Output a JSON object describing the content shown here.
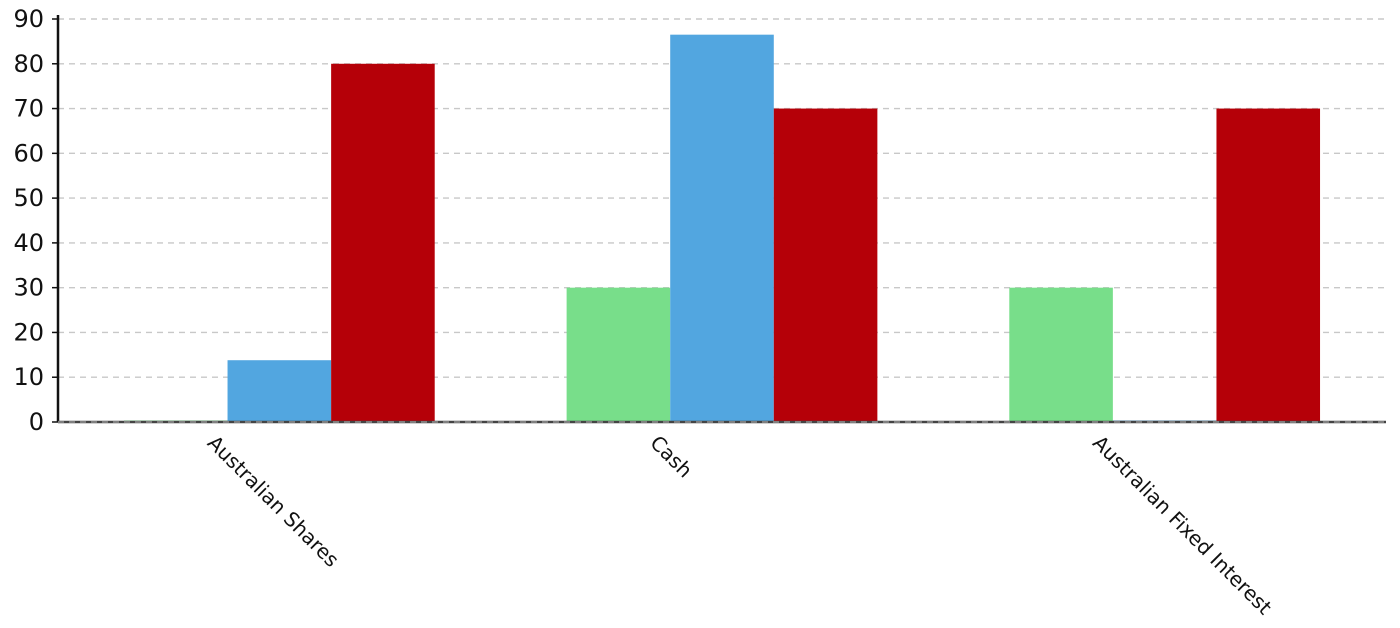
{
  "chart_data": {
    "type": "bar",
    "title": "",
    "xlabel": "",
    "ylabel": "",
    "categories": [
      "Australian Shares",
      "Cash",
      "Australian Fixed Interest"
    ],
    "series": [
      {
        "values": [
          0.3,
          30,
          30
        ],
        "color": "#78de8a"
      },
      {
        "values": [
          13.8,
          86.5,
          0.3
        ],
        "color": "#52a6e0"
      },
      {
        "values": [
          80,
          70,
          70
        ],
        "color": "#b50008"
      }
    ],
    "ylim": [
      0,
      90
    ],
    "yticks": [
      0,
      10,
      20,
      30,
      40,
      50,
      60,
      70,
      80,
      90
    ],
    "grid": true,
    "grid_style": "dashed",
    "legend": "none",
    "category_label_rotation": 45,
    "axis_color": "#111111",
    "grid_color": "#c8c8c8"
  }
}
